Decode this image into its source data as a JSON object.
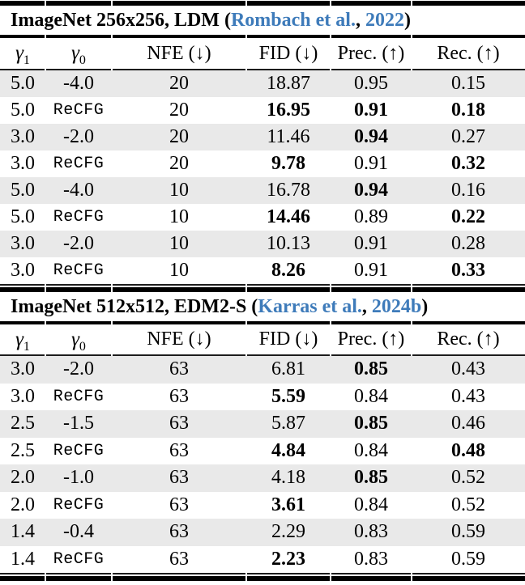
{
  "page": {
    "background": "#ffffff",
    "link_color": "#3e7bba",
    "stripe_color": "#e9e9e9"
  },
  "tables": [
    {
      "id": "ldm",
      "title": {
        "prefix": "ImageNet 256x256, LDM (",
        "cite_author": "Rombach et al.",
        "cite_sep": ", ",
        "cite_year": "2022",
        "suffix": ")"
      },
      "columns": {
        "gamma1": {
          "symbol": "γ",
          "sub": "1"
        },
        "gamma0": {
          "symbol": "γ",
          "sub": "0"
        },
        "nfe": "NFE (↓)",
        "fid": "FID (↓)",
        "prec": "Prec. (↑)",
        "rec": "Rec. (↑)"
      },
      "rows": [
        {
          "cells": [
            {
              "v": "5.0"
            },
            {
              "v": "-4.0"
            },
            {
              "v": "20"
            },
            {
              "v": "18.87"
            },
            {
              "v": "0.95"
            },
            {
              "v": "0.15"
            }
          ]
        },
        {
          "cells": [
            {
              "v": "5.0"
            },
            {
              "v": "ReCFG",
              "f": "mono"
            },
            {
              "v": "20"
            },
            {
              "v": "16.95",
              "f": "bold"
            },
            {
              "v": "0.91",
              "f": "bold"
            },
            {
              "v": "0.18",
              "f": "bold"
            }
          ]
        },
        {
          "cells": [
            {
              "v": "3.0"
            },
            {
              "v": "-2.0"
            },
            {
              "v": "20"
            },
            {
              "v": "11.46"
            },
            {
              "v": "0.94",
              "f": "bold"
            },
            {
              "v": "0.27"
            }
          ]
        },
        {
          "cells": [
            {
              "v": "3.0"
            },
            {
              "v": "ReCFG",
              "f": "mono"
            },
            {
              "v": "20"
            },
            {
              "v": "9.78",
              "f": "bold"
            },
            {
              "v": "0.91"
            },
            {
              "v": "0.32",
              "f": "bold"
            }
          ]
        },
        {
          "cells": [
            {
              "v": "5.0"
            },
            {
              "v": "-4.0"
            },
            {
              "v": "10"
            },
            {
              "v": "16.78"
            },
            {
              "v": "0.94",
              "f": "bold"
            },
            {
              "v": "0.16"
            }
          ]
        },
        {
          "cells": [
            {
              "v": "5.0"
            },
            {
              "v": "ReCFG",
              "f": "mono"
            },
            {
              "v": "10"
            },
            {
              "v": "14.46",
              "f": "bold"
            },
            {
              "v": "0.89"
            },
            {
              "v": "0.22",
              "f": "bold"
            }
          ]
        },
        {
          "cells": [
            {
              "v": "3.0"
            },
            {
              "v": "-2.0"
            },
            {
              "v": "10"
            },
            {
              "v": "10.13"
            },
            {
              "v": "0.91"
            },
            {
              "v": "0.28"
            }
          ]
        },
        {
          "cells": [
            {
              "v": "3.0"
            },
            {
              "v": "ReCFG",
              "f": "mono"
            },
            {
              "v": "10"
            },
            {
              "v": "8.26",
              "f": "bold"
            },
            {
              "v": "0.91"
            },
            {
              "v": "0.33",
              "f": "bold"
            }
          ]
        }
      ]
    },
    {
      "id": "edm2s",
      "title": {
        "prefix": "ImageNet 512x512, EDM2-S (",
        "cite_author": "Karras et al.",
        "cite_sep": ", ",
        "cite_year": "2024b",
        "suffix": ")"
      },
      "columns": {
        "gamma1": {
          "symbol": "γ",
          "sub": "1"
        },
        "gamma0": {
          "symbol": "γ",
          "sub": "0"
        },
        "nfe": "NFE (↓)",
        "fid": "FID (↓)",
        "prec": "Prec. (↑)",
        "rec": "Rec. (↑)"
      },
      "rows": [
        {
          "cells": [
            {
              "v": "3.0"
            },
            {
              "v": "-2.0"
            },
            {
              "v": "63"
            },
            {
              "v": "6.81"
            },
            {
              "v": "0.85",
              "f": "bold"
            },
            {
              "v": "0.43"
            }
          ]
        },
        {
          "cells": [
            {
              "v": "3.0"
            },
            {
              "v": "ReCFG",
              "f": "mono"
            },
            {
              "v": "63"
            },
            {
              "v": "5.59",
              "f": "bold"
            },
            {
              "v": "0.84"
            },
            {
              "v": "0.43"
            }
          ]
        },
        {
          "cells": [
            {
              "v": "2.5"
            },
            {
              "v": "-1.5"
            },
            {
              "v": "63"
            },
            {
              "v": "5.87"
            },
            {
              "v": "0.85",
              "f": "bold"
            },
            {
              "v": "0.46"
            }
          ]
        },
        {
          "cells": [
            {
              "v": "2.5"
            },
            {
              "v": "ReCFG",
              "f": "mono"
            },
            {
              "v": "63"
            },
            {
              "v": "4.84",
              "f": "bold"
            },
            {
              "v": "0.84"
            },
            {
              "v": "0.48",
              "f": "bold"
            }
          ]
        },
        {
          "cells": [
            {
              "v": "2.0"
            },
            {
              "v": "-1.0"
            },
            {
              "v": "63"
            },
            {
              "v": "4.18"
            },
            {
              "v": "0.85",
              "f": "bold"
            },
            {
              "v": "0.52"
            }
          ]
        },
        {
          "cells": [
            {
              "v": "2.0"
            },
            {
              "v": "ReCFG",
              "f": "mono"
            },
            {
              "v": "63"
            },
            {
              "v": "3.61",
              "f": "bold"
            },
            {
              "v": "0.84"
            },
            {
              "v": "0.52"
            }
          ]
        },
        {
          "cells": [
            {
              "v": "1.4"
            },
            {
              "v": "-0.4"
            },
            {
              "v": "63"
            },
            {
              "v": "2.29"
            },
            {
              "v": "0.83"
            },
            {
              "v": "0.59"
            }
          ]
        },
        {
          "cells": [
            {
              "v": "1.4"
            },
            {
              "v": "ReCFG",
              "f": "mono"
            },
            {
              "v": "63"
            },
            {
              "v": "2.23",
              "f": "bold"
            },
            {
              "v": "0.83"
            },
            {
              "v": "0.59"
            }
          ]
        }
      ]
    }
  ]
}
